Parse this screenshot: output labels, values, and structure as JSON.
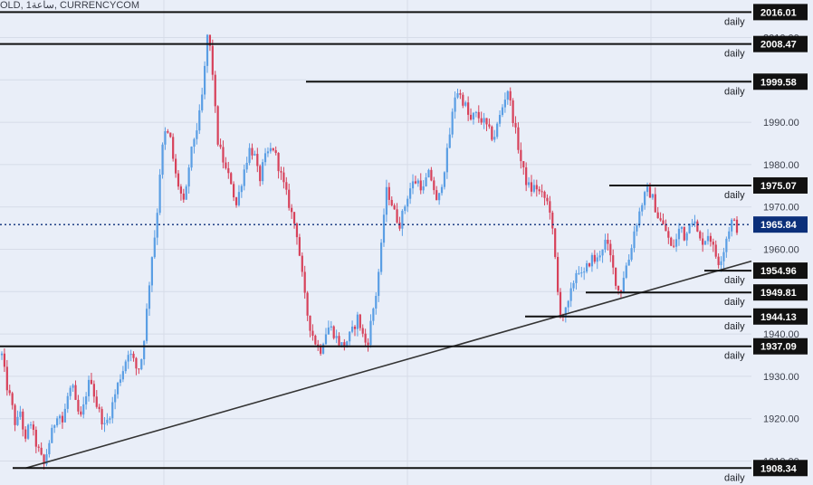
{
  "header": {
    "text": "OLD, 1ساعة, CURRENCYCOM"
  },
  "chart_data": {
    "type": "candlestick",
    "y_axis": {
      "position": "right",
      "range": [
        1907,
        2018
      ],
      "ticks": [
        1910,
        1920,
        1930,
        1940,
        1950,
        1960,
        1970,
        1980,
        1990,
        2000,
        2010
      ]
    },
    "grid": true,
    "colors": {
      "up": "#5a9ee4",
      "down": "#d7415a",
      "background": "#e9eef8",
      "grid": "#d6dce8",
      "line": "#111111",
      "current_label": "#0b2f7a"
    },
    "current_price": {
      "value": 1965.84,
      "label": "1965.84"
    },
    "levels": [
      {
        "value": 2016.01,
        "label": "2016.01",
        "tag": "daily"
      },
      {
        "value": 2008.47,
        "label": "2008.47",
        "tag": "daily"
      },
      {
        "value": 1999.58,
        "label": "1999.58",
        "tag": "daily"
      },
      {
        "value": 1975.07,
        "label": "1975.07",
        "tag": "daily"
      },
      {
        "value": 1954.96,
        "label": "1954.96",
        "tag": "daily"
      },
      {
        "value": 1949.81,
        "label": "1949.81",
        "tag": "daily"
      },
      {
        "value": 1944.13,
        "label": "1944.13",
        "tag": "daily"
      },
      {
        "value": 1937.09,
        "label": "1937.09",
        "tag": "daily"
      },
      {
        "value": 1908.34,
        "label": "1908.34",
        "tag": "daily"
      }
    ],
    "trendline": {
      "from": 1908.3,
      "to": 1957.2
    },
    "price_path": [
      1935,
      1928,
      1924,
      1918,
      1922,
      1914,
      1920,
      1915,
      1912,
      1909,
      1914,
      1918,
      1922,
      1919,
      1925,
      1928,
      1922,
      1920,
      1926,
      1930,
      1924,
      1921,
      1918,
      1921,
      1925,
      1929,
      1932,
      1936,
      1934,
      1931,
      1935,
      1946,
      1958,
      1966,
      1982,
      1988,
      1986,
      1978,
      1974,
      1970,
      1980,
      1986,
      1990,
      1998,
      2012,
      2002,
      1986,
      1982,
      1978,
      1976,
      1970,
      1975,
      1980,
      1984,
      1982,
      1976,
      1981,
      1983,
      1984,
      1980,
      1976,
      1972,
      1968,
      1964,
      1955,
      1946,
      1941,
      1938,
      1936,
      1940,
      1942,
      1940,
      1938,
      1937,
      1939,
      1941,
      1944,
      1940,
      1937,
      1944,
      1950,
      1960,
      1974,
      1972,
      1968,
      1966,
      1970,
      1974,
      1976,
      1976,
      1974,
      1978,
      1976,
      1970,
      1976,
      1982,
      1990,
      1998,
      1996,
      1994,
      1990,
      1992,
      1991,
      1990,
      1988,
      1986,
      1990,
      1994,
      1998,
      1992,
      1986,
      1980,
      1976,
      1974,
      1975,
      1973,
      1972,
      1970,
      1960,
      1946,
      1944,
      1947,
      1952,
      1956,
      1953,
      1956,
      1958,
      1957,
      1960,
      1962,
      1958,
      1953,
      1949,
      1955,
      1958,
      1964,
      1968,
      1972,
      1974,
      1972,
      1968,
      1966,
      1964,
      1960,
      1962,
      1966,
      1962,
      1968,
      1966,
      1962,
      1962,
      1964,
      1960,
      1957,
      1959,
      1964,
      1967,
      1965
    ]
  }
}
